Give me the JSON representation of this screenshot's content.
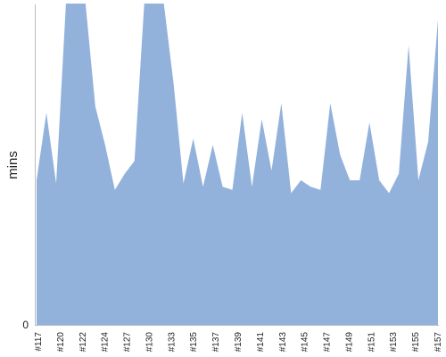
{
  "chart_data": {
    "type": "area",
    "title": "",
    "xlabel": "",
    "ylabel": "mins",
    "y_tick_labels": [
      "0"
    ],
    "ylim": [
      0,
      100
    ],
    "grid": false,
    "legend": "none",
    "colors": {
      "area": "#92b2dc",
      "axis": "#bbbbbb"
    },
    "x_tick_labels": [
      "#117",
      "#120",
      "#122",
      "#124",
      "#127",
      "#130",
      "#133",
      "#135",
      "#137",
      "#139",
      "#141",
      "#143",
      "#145",
      "#147",
      "#149",
      "#151",
      "#153",
      "#155",
      "#157"
    ],
    "series": [
      {
        "values": [
          45,
          66,
          44,
          100,
          100,
          100,
          68,
          56,
          42,
          47,
          51,
          100,
          100,
          100,
          75,
          44,
          58,
          43,
          56,
          43,
          42,
          66,
          43,
          64,
          48,
          69,
          41,
          45,
          43,
          42,
          69,
          53,
          45,
          45,
          63,
          45,
          41,
          47,
          87,
          45,
          57,
          95
        ]
      }
    ]
  }
}
